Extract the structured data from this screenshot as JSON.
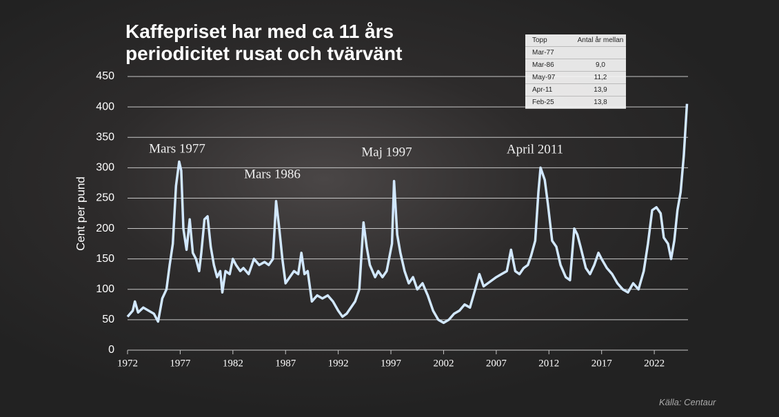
{
  "chart_data": {
    "type": "line",
    "title": "Kaffepriset har med ca 11 års periodicitet rusat och tvärvänt",
    "y_label": "Cent per pund",
    "source": "Källa: Centaur",
    "annotations": [
      "Mars 1977",
      "Mars 1986",
      "Maj 1997",
      "April 2011"
    ],
    "x": [
      1972.0,
      1972.5,
      1972.7,
      1973.0,
      1973.5,
      1974.0,
      1974.5,
      1974.9,
      1975.3,
      1975.7,
      1976.0,
      1976.3,
      1976.6,
      1976.9,
      1977.1,
      1977.3,
      1977.6,
      1977.9,
      1978.2,
      1978.5,
      1978.8,
      1979.0,
      1979.3,
      1979.6,
      1979.9,
      1980.2,
      1980.5,
      1980.8,
      1981.0,
      1981.3,
      1981.7,
      1982.0,
      1982.3,
      1982.7,
      1983.0,
      1983.5,
      1984.0,
      1984.5,
      1985.0,
      1985.4,
      1985.8,
      1986.1,
      1986.4,
      1986.7,
      1987.0,
      1987.4,
      1987.8,
      1988.2,
      1988.5,
      1988.8,
      1989.1,
      1989.5,
      1990.0,
      1990.5,
      1991.0,
      1991.5,
      1992.0,
      1992.4,
      1992.8,
      1993.2,
      1993.6,
      1994.0,
      1994.4,
      1994.7,
      1995.0,
      1995.5,
      1995.8,
      1996.2,
      1996.6,
      1997.1,
      1997.3,
      1997.6,
      1997.9,
      1998.3,
      1998.7,
      1999.1,
      1999.5,
      2000.0,
      2000.5,
      2001.0,
      2001.5,
      2002.0,
      2002.5,
      2003.0,
      2003.5,
      2004.0,
      2004.5,
      2005.0,
      2005.4,
      2005.8,
      2006.2,
      2006.6,
      2007.0,
      2007.5,
      2008.0,
      2008.4,
      2008.8,
      2009.2,
      2009.6,
      2010.0,
      2010.3,
      2010.7,
      2011.0,
      2011.2,
      2011.6,
      2011.9,
      2012.3,
      2012.7,
      2013.1,
      2013.6,
      2014.0,
      2014.4,
      2014.7,
      2015.0,
      2015.5,
      2015.9,
      2016.3,
      2016.7,
      2017.0,
      2017.5,
      2018.0,
      2018.5,
      2019.0,
      2019.5,
      2020.0,
      2020.5,
      2021.0,
      2021.4,
      2021.8,
      2022.2,
      2022.6,
      2022.9,
      2023.3,
      2023.6,
      2023.9,
      2024.2,
      2024.5,
      2024.8,
      2025.1
    ],
    "series": [
      {
        "color": "#d2e8ff",
        "values": [
          55,
          65,
          80,
          62,
          70,
          65,
          60,
          47,
          85,
          100,
          140,
          175,
          270,
          310,
          295,
          200,
          165,
          215,
          160,
          150,
          130,
          160,
          215,
          220,
          170,
          140,
          120,
          130,
          95,
          130,
          125,
          150,
          140,
          130,
          135,
          125,
          150,
          140,
          145,
          140,
          150,
          245,
          200,
          150,
          110,
          120,
          130,
          125,
          160,
          125,
          130,
          80,
          90,
          85,
          90,
          80,
          65,
          55,
          60,
          70,
          80,
          100,
          210,
          170,
          140,
          120,
          130,
          120,
          130,
          175,
          278,
          190,
          160,
          130,
          110,
          120,
          100,
          110,
          90,
          65,
          50,
          45,
          50,
          60,
          65,
          75,
          70,
          100,
          125,
          105,
          110,
          115,
          120,
          125,
          130,
          165,
          130,
          125,
          135,
          140,
          155,
          180,
          260,
          300,
          280,
          240,
          180,
          170,
          140,
          120,
          115,
          200,
          190,
          170,
          135,
          125,
          140,
          160,
          150,
          135,
          125,
          110,
          100,
          95,
          110,
          100,
          130,
          175,
          230,
          235,
          225,
          185,
          175,
          150,
          180,
          230,
          260,
          320,
          405
        ]
      }
    ],
    "xlim": [
      1972,
      2025.2
    ],
    "ylim": [
      0,
      450
    ],
    "xticks": [
      1972,
      1977,
      1982,
      1987,
      1992,
      1997,
      2002,
      2007,
      2012,
      2017,
      2022
    ],
    "yticks": [
      0,
      50,
      100,
      150,
      200,
      250,
      300,
      350,
      400,
      450
    ],
    "grid": true
  },
  "peak_table": {
    "columns": [
      "Topp",
      "Antal år mellan"
    ],
    "rows": [
      [
        "Mar-77"
      ],
      [
        "Mar-86",
        "9,0"
      ],
      [
        "May-97",
        "11,2"
      ],
      [
        "Apr-11",
        "13,9"
      ],
      [
        "Feb-25",
        "13,8"
      ]
    ]
  }
}
